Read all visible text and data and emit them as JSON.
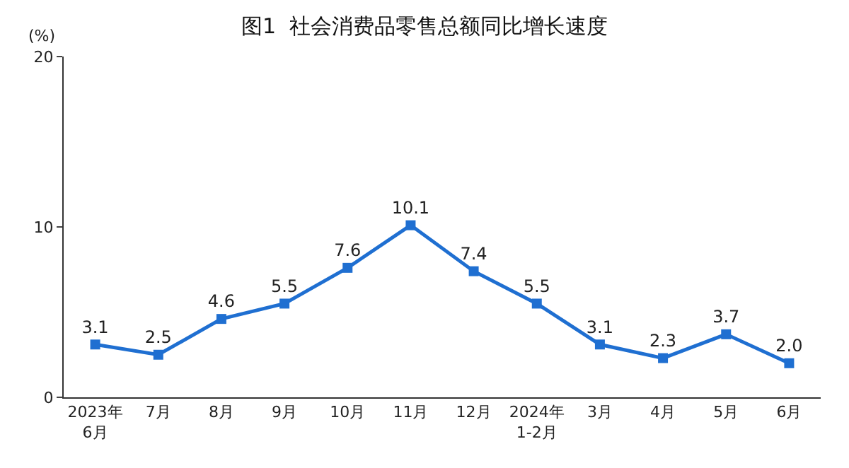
{
  "chart_data": {
    "type": "line",
    "title": "图1  社会消费品零售总额同比增长速度",
    "ylabel": "(%)",
    "categories": [
      "2023年\n6月",
      "7月",
      "8月",
      "9月",
      "10月",
      "11月",
      "12月",
      "2024年\n1-2月",
      "3月",
      "4月",
      "5月",
      "6月"
    ],
    "series": [
      {
        "color": "#1f6fd1",
        "values": [
          3.1,
          2.5,
          4.6,
          5.5,
          7.6,
          10.1,
          7.4,
          5.5,
          3.1,
          2.3,
          3.7,
          2.0
        ],
        "value_labels": [
          "3.1",
          "2.5",
          "4.6",
          "5.5",
          "7.6",
          "10.1",
          "7.4",
          "5.5",
          "3.1",
          "2.3",
          "3.7",
          "2.0"
        ]
      }
    ],
    "ylim": [
      0,
      20
    ],
    "yticks": [
      0,
      10,
      20
    ],
    "grid": false,
    "marker": "square",
    "line_style": "solid"
  }
}
